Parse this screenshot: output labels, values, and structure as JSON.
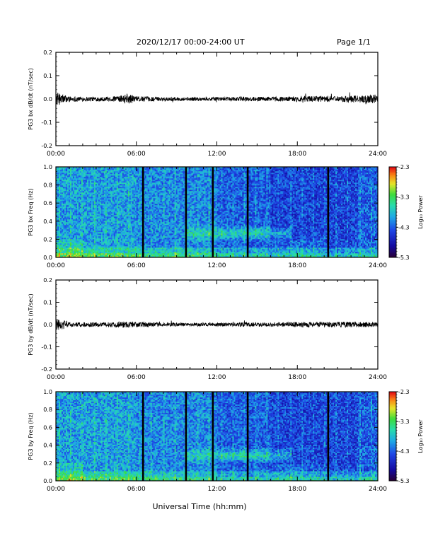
{
  "header": {
    "date_range": "2020/12/17  00:00-24:00 UT",
    "page": "Page 1/1"
  },
  "chart_data": [
    {
      "type": "line",
      "ylabel": "PG3 bx dB/dt (nT/sec)",
      "ylim": [
        -0.2,
        0.2
      ],
      "yticks": [
        "0.2",
        "0.1",
        "0.0",
        "-0.1",
        "-0.2"
      ],
      "xlim": [
        0,
        24
      ],
      "xticks": [
        "00:00",
        "06:00",
        "12:00",
        "18:00",
        "24:00"
      ],
      "series": [
        {
          "values_description_x_hours": [
            0,
            0.5,
            1,
            2,
            3,
            4,
            5,
            5.3,
            6,
            7,
            8,
            9,
            10,
            11,
            12,
            13,
            14,
            15,
            16,
            17,
            18,
            19,
            20,
            21,
            22,
            23,
            24
          ],
          "amplitude": [
            0.03,
            0.02,
            0.012,
            0.01,
            0.01,
            0.01,
            0.015,
            0.025,
            0.012,
            0.01,
            0.008,
            0.008,
            0.008,
            0.008,
            0.008,
            0.008,
            0.01,
            0.009,
            0.01,
            0.01,
            0.012,
            0.012,
            0.012,
            0.012,
            0.015,
            0.015,
            0.02
          ]
        }
      ],
      "grid": false
    },
    {
      "type": "heatmap",
      "ylabel": "PG3 bx Freq (Hz)",
      "ylim": [
        0,
        1
      ],
      "yticks": [
        "1.0",
        "0.8",
        "0.6",
        "0.4",
        "0.2",
        "0.0"
      ],
      "xlim": [
        0,
        24
      ],
      "xticks": [
        "00:00",
        "06:00",
        "12:00",
        "18:00",
        "24:00"
      ],
      "colorbar": {
        "label": "Log₁₀ Power",
        "min": -5.3,
        "max": -2.3,
        "ticks": [
          "-2.3",
          "-3.3",
          "-4.3",
          "-5.3"
        ]
      },
      "gap_lines_hours": [
        6.5,
        9.7,
        11.7,
        14.3,
        20.3
      ],
      "grid": false
    },
    {
      "type": "line",
      "ylabel": "PG3 by dB/dt (nT/sec)",
      "ylim": [
        -0.2,
        0.2
      ],
      "yticks": [
        "0.2",
        "0.1",
        "0.0",
        "-0.1",
        "-0.2"
      ],
      "xlim": [
        0,
        24
      ],
      "xticks": [
        "00:00",
        "06:00",
        "12:00",
        "18:00",
        "24:00"
      ],
      "series": [
        {
          "values_description_x_hours": [
            0,
            0.5,
            1,
            2,
            3,
            4,
            5,
            6,
            7,
            8,
            9,
            10,
            11,
            12,
            13,
            14,
            15,
            16,
            17,
            18,
            19,
            20,
            21,
            22,
            23,
            24
          ],
          "amplitude": [
            0.035,
            0.02,
            0.012,
            0.01,
            0.01,
            0.01,
            0.015,
            0.012,
            0.01,
            0.008,
            0.008,
            0.008,
            0.008,
            0.008,
            0.008,
            0.01,
            0.009,
            0.01,
            0.01,
            0.012,
            0.012,
            0.012,
            0.012,
            0.012,
            0.012,
            0.012
          ]
        }
      ],
      "grid": false
    },
    {
      "type": "heatmap",
      "ylabel": "PG3 by Freq (Hz)",
      "ylim": [
        0,
        1
      ],
      "yticks": [
        "1.0",
        "0.8",
        "0.6",
        "0.4",
        "0.2",
        "0.0"
      ],
      "xlim": [
        0,
        24
      ],
      "xticks": [
        "00:00",
        "06:00",
        "12:00",
        "18:00",
        "24:00"
      ],
      "xlabel": "Universal Time (hh:mm)",
      "colorbar": {
        "label": "Log₁₀ Power",
        "min": -5.3,
        "max": -2.3,
        "ticks": [
          "-2.3",
          "-3.3",
          "-4.3",
          "-5.3"
        ]
      },
      "gap_lines_hours": [
        6.5,
        9.7,
        11.7,
        14.3,
        20.3
      ],
      "grid": false
    }
  ]
}
